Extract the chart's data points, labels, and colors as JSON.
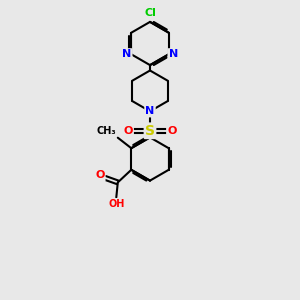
{
  "bg_color": "#e8e8e8",
  "bond_color": "#000000",
  "bond_width": 1.5,
  "atom_colors": {
    "N": "#0000ff",
    "O": "#ff0000",
    "S": "#cccc00",
    "Cl": "#00cc00",
    "C": "#000000",
    "H": "#888888"
  },
  "font_size": 8,
  "fig_width": 3.0,
  "fig_height": 3.0,
  "xlim": [
    0,
    6
  ],
  "ylim": [
    0,
    10
  ]
}
